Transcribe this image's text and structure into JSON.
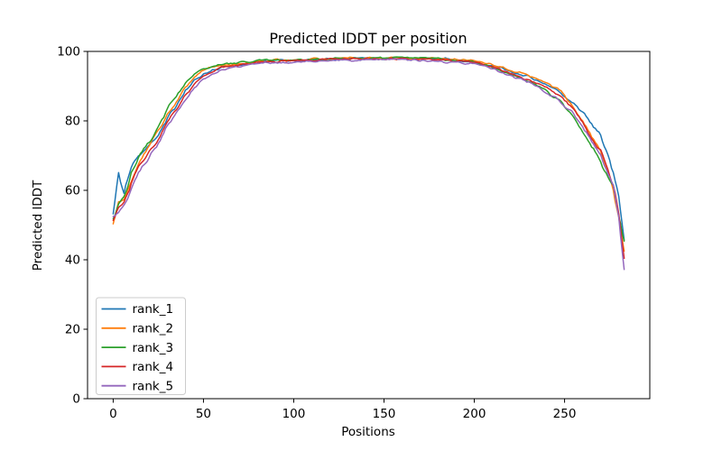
{
  "figure": {
    "background": "#ffffff",
    "text_color": "#000000",
    "spine_color": "#000000"
  },
  "chart_data": {
    "type": "line",
    "title": "Predicted lDDT per position",
    "xlabel": "Positions",
    "ylabel": "Predicted lDDT",
    "xlim": [
      -14.2,
      297.2
    ],
    "ylim": [
      0,
      100
    ],
    "xticks": [
      0,
      50,
      100,
      150,
      200,
      250
    ],
    "yticks": [
      0,
      20,
      40,
      60,
      80,
      100
    ],
    "grid": false,
    "line_width": 1.5,
    "jitter_amplitude": 0.45,
    "legend": {
      "position": "lower-left",
      "border_color": "#cccccc",
      "fill": "#ffffff"
    },
    "positions_sampled": [
      0,
      3,
      6,
      10,
      14,
      18,
      22,
      26,
      30,
      35,
      40,
      45,
      50,
      60,
      70,
      85,
      100,
      120,
      140,
      160,
      180,
      200,
      210,
      220,
      230,
      240,
      248,
      254,
      260,
      265,
      270,
      274,
      277,
      280,
      283
    ],
    "series": [
      {
        "name": "rank_1",
        "color": "#1f77b4",
        "values": [
          53,
          65,
          59,
          66,
          70,
          71.5,
          74,
          77,
          81,
          84.5,
          88.5,
          91.5,
          93.5,
          95.5,
          96.2,
          97.2,
          97.4,
          97.8,
          98,
          98,
          97.9,
          97,
          96,
          94.3,
          92.8,
          90.3,
          88,
          85.5,
          82.5,
          79,
          75.5,
          70,
          65,
          58,
          46
        ]
      },
      {
        "name": "rank_2",
        "color": "#ff7f0e",
        "values": [
          50.5,
          56,
          57,
          63,
          68,
          71,
          74.5,
          78,
          82,
          85.5,
          89.5,
          92.5,
          94.5,
          96,
          96.5,
          97.5,
          97.6,
          98,
          98.2,
          98.2,
          98,
          97.2,
          96.1,
          94.5,
          93.2,
          91,
          88.5,
          84.5,
          80,
          75.5,
          71,
          65,
          60,
          53,
          42
        ]
      },
      {
        "name": "rank_3",
        "color": "#2ca02c",
        "values": [
          52,
          56,
          58,
          65,
          69.5,
          72.5,
          75.5,
          79.5,
          83.5,
          87,
          91,
          93.5,
          95,
          96.3,
          96.8,
          97.5,
          97.5,
          97.9,
          98.1,
          98.1,
          97.9,
          96.9,
          95.5,
          93.5,
          91.5,
          88.5,
          85.5,
          81.5,
          77,
          72.5,
          68.5,
          63.5,
          61,
          53,
          45
        ]
      },
      {
        "name": "rank_4",
        "color": "#d62728",
        "values": [
          51.5,
          55,
          56.5,
          62,
          66.5,
          69.5,
          72.5,
          76,
          80,
          83.5,
          87.5,
          90.5,
          93,
          95.3,
          96,
          97.1,
          97.3,
          97.7,
          97.9,
          97.9,
          97.7,
          96.7,
          95.4,
          93.6,
          92,
          89.5,
          86.8,
          83.8,
          79.5,
          75,
          71.5,
          66,
          61.5,
          53.5,
          41
        ]
      },
      {
        "name": "rank_5",
        "color": "#9467bd",
        "values": [
          52.5,
          54,
          55.5,
          60.5,
          65,
          68,
          71,
          74.5,
          78.5,
          82,
          86,
          89.5,
          92,
          94.8,
          95.6,
          96.8,
          96.9,
          97.3,
          97.6,
          97.6,
          97.3,
          96.3,
          95,
          93.2,
          91.3,
          88.3,
          85.3,
          82.5,
          78.5,
          74.5,
          70,
          64.5,
          61.5,
          52.5,
          37
        ]
      }
    ]
  }
}
